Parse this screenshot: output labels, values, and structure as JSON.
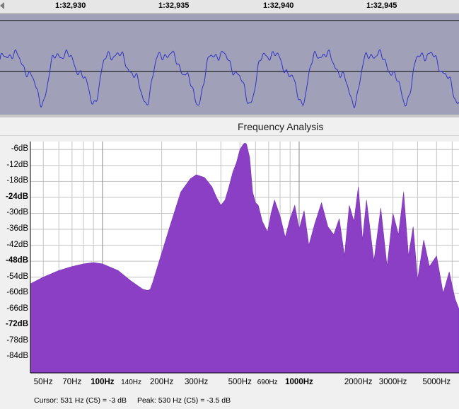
{
  "ruler": {
    "labels": [
      "1:32,930",
      "1:32,935",
      "1:32,940",
      "1:32,945"
    ]
  },
  "window_title": "Frequency Analysis",
  "y_labels": [
    "-6dB",
    "-12dB",
    "-18dB",
    "-24dB",
    "-30dB",
    "-36dB",
    "-42dB",
    "-48dB",
    "-54dB",
    "-60dB",
    "-66dB",
    "-72dB",
    "-78dB",
    "-84dB"
  ],
  "x_labels": [
    "50Hz",
    "70Hz",
    "100Hz",
    "140Hz",
    "200Hz",
    "300Hz",
    "500Hz",
    "690Hz",
    "1000Hz",
    "2000Hz",
    "3000Hz",
    "5000Hz"
  ],
  "status": {
    "cursor": "Cursor: 531 Hz (C5) = -3 dB",
    "peak": "Peak: 530 Hz (C5) = -3.5 dB"
  },
  "colors": {
    "spectrum": "#8a3fc4",
    "waveform": "#3232c8",
    "track_bg": "#a0a0b8"
  },
  "chart_data": {
    "type": "area",
    "title": "Frequency Analysis",
    "xlabel": "",
    "ylabel": "",
    "x_scale": "log",
    "xlim": [
      43,
      6500
    ],
    "ylim": [
      -90,
      -3
    ],
    "grid": true,
    "y_ticks": [
      -6,
      -12,
      -18,
      -24,
      -30,
      -36,
      -42,
      -48,
      -54,
      -60,
      -66,
      -72,
      -78,
      -84
    ],
    "x_ticks": [
      50,
      70,
      100,
      140,
      200,
      300,
      500,
      690,
      1000,
      2000,
      3000,
      5000
    ],
    "series": [
      {
        "x": [
          43,
          50,
          60,
          70,
          80,
          90,
          100,
          120,
          140,
          160,
          170,
          175,
          180,
          200,
          220,
          250,
          280,
          300,
          330,
          360,
          380,
          400,
          420,
          440,
          460,
          480,
          500,
          520,
          530,
          540,
          560,
          580,
          600,
          620,
          650,
          690,
          720,
          750,
          800,
          850,
          900,
          950,
          1000,
          1060,
          1120,
          1200,
          1300,
          1400,
          1500,
          1600,
          1700,
          1800,
          1900,
          2000,
          2100,
          2200,
          2400,
          2600,
          2800,
          3000,
          3200,
          3400,
          3600,
          3800,
          4000,
          4300,
          4600,
          5000,
          5400,
          5800,
          6200,
          6500
        ],
        "y": [
          -56.5,
          -54,
          -51.5,
          -50,
          -49,
          -48.5,
          -49,
          -51.5,
          -55.5,
          -58.5,
          -59,
          -58.5,
          -56,
          -45,
          -35,
          -22,
          -17,
          -15.5,
          -16.5,
          -20,
          -24,
          -27,
          -25,
          -20,
          -14.5,
          -11,
          -6,
          -4,
          -3.5,
          -4,
          -9,
          -22,
          -26,
          -27,
          -33,
          -37,
          -30,
          -25,
          -31,
          -39,
          -32,
          -27,
          -36,
          -29,
          -42,
          -34,
          -26,
          -35,
          -38,
          -32,
          -46,
          -27,
          -33,
          -20,
          -40,
          -25,
          -48,
          -28,
          -50,
          -30,
          -38,
          -22,
          -46,
          -35,
          -55,
          -40,
          -50,
          -46,
          -60,
          -52,
          -62,
          -66
        ]
      }
    ]
  }
}
